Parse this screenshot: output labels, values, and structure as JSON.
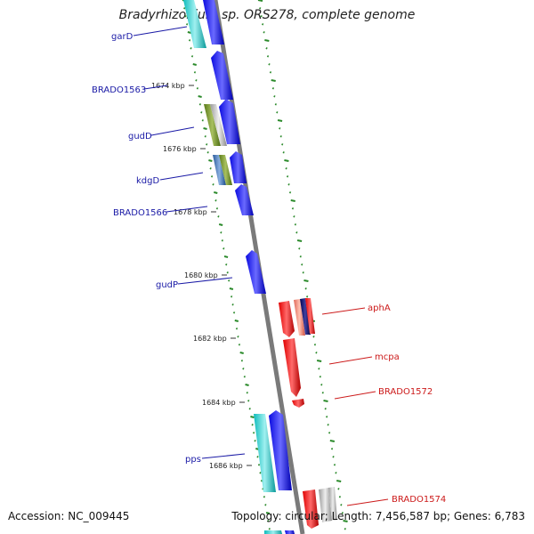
{
  "title": "Bradyrhizobium sp. ORS278, complete genome",
  "footer": {
    "accession": "Accession: NC_009445",
    "summary": "Topology: circular; Length: 7,456,587 bp; Genes: 6,783"
  },
  "colors": {
    "forward_label": "#1a1aa6",
    "reverse_label": "#cc1a1a",
    "tick_dots": "#2b8a2b",
    "backbone": "#7a7a7a"
  },
  "scale_ticks": [
    {
      "label": "1674 kbp"
    },
    {
      "label": "1676 kbp"
    },
    {
      "label": "1678 kbp"
    },
    {
      "label": "1680 kbp"
    },
    {
      "label": "1682 kbp"
    },
    {
      "label": "1684 kbp"
    },
    {
      "label": "1686 kbp"
    }
  ],
  "forward_gene_labels": [
    {
      "name": "garD"
    },
    {
      "name": "BRADO1563"
    },
    {
      "name": "gudD"
    },
    {
      "name": "kdgD"
    },
    {
      "name": "BRADO1566"
    },
    {
      "name": "gudP"
    },
    {
      "name": "pps"
    }
  ],
  "reverse_gene_labels": [
    {
      "name": "aphA"
    },
    {
      "name": "mcpa"
    },
    {
      "name": "BRADO1572"
    },
    {
      "name": "BRADO1574"
    }
  ]
}
